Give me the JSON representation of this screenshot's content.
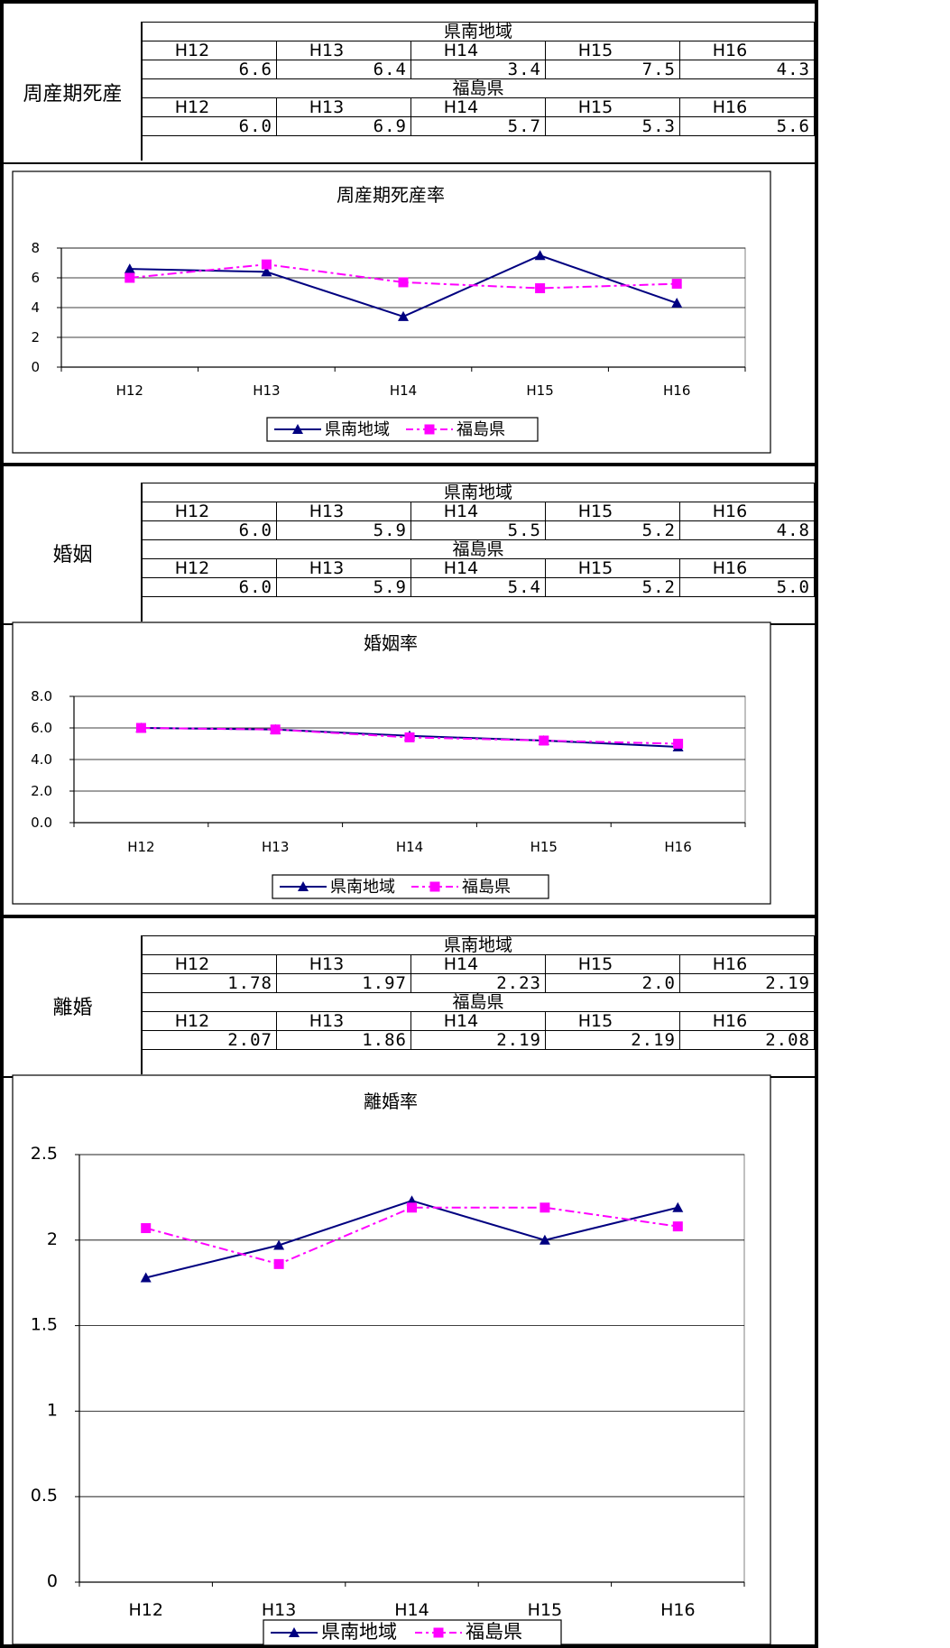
{
  "sections": [
    {
      "label": "周産期死産",
      "regions": [
        {
          "name": "県南地域",
          "years": [
            "H12",
            "H13",
            "H14",
            "H15",
            "H16"
          ],
          "values": [
            "6.6",
            "6.4",
            "3.4",
            "7.5",
            "4.3"
          ]
        },
        {
          "name": "福島県",
          "years": [
            "H12",
            "H13",
            "H14",
            "H15",
            "H16"
          ],
          "values": [
            "6.0",
            "6.9",
            "5.7",
            "5.3",
            "5.6"
          ]
        }
      ]
    },
    {
      "label": "婚姻",
      "regions": [
        {
          "name": "県南地域",
          "years": [
            "H12",
            "H13",
            "H14",
            "H15",
            "H16"
          ],
          "values": [
            "6.0",
            "5.9",
            "5.5",
            "5.2",
            "4.8"
          ]
        },
        {
          "name": "福島県",
          "years": [
            "H12",
            "H13",
            "H14",
            "H15",
            "H16"
          ],
          "values": [
            "6.0",
            "5.9",
            "5.4",
            "5.2",
            "5.0"
          ]
        }
      ]
    },
    {
      "label": "離婚",
      "regions": [
        {
          "name": "県南地域",
          "years": [
            "H12",
            "H13",
            "H14",
            "H15",
            "H16"
          ],
          "values": [
            "1.78",
            "1.97",
            "2.23",
            "2.0",
            "2.19"
          ]
        },
        {
          "name": "福島県",
          "years": [
            "H12",
            "H13",
            "H14",
            "H15",
            "H16"
          ],
          "values": [
            "2.07",
            "1.86",
            "2.19",
            "2.19",
            "2.08"
          ]
        }
      ]
    }
  ],
  "chart_data": [
    {
      "type": "line",
      "title": "周産期死産率",
      "categories": [
        "H12",
        "H13",
        "H14",
        "H15",
        "H16"
      ],
      "ylim": [
        0,
        8
      ],
      "yticks": [
        "0",
        "2",
        "4",
        "6",
        "8"
      ],
      "grid": true,
      "legend": "bottom",
      "series": [
        {
          "name": "県南地域",
          "values": [
            6.6,
            6.4,
            3.4,
            7.5,
            4.3
          ],
          "color": "#000080",
          "marker": "triangle",
          "dash": "solid"
        },
        {
          "name": "福島県",
          "values": [
            6.0,
            6.9,
            5.7,
            5.3,
            5.6
          ],
          "color": "#ff00ff",
          "marker": "square",
          "dash": "dashdot"
        }
      ]
    },
    {
      "type": "line",
      "title": "婚姻率",
      "categories": [
        "H12",
        "H13",
        "H14",
        "H15",
        "H16"
      ],
      "ylim": [
        0,
        8
      ],
      "yticks": [
        "0.0",
        "2.0",
        "4.0",
        "6.0",
        "8.0"
      ],
      "grid": true,
      "legend": "bottom",
      "series": [
        {
          "name": "県南地域",
          "values": [
            6.0,
            5.9,
            5.5,
            5.2,
            4.8
          ],
          "color": "#000080",
          "marker": "triangle",
          "dash": "solid"
        },
        {
          "name": "福島県",
          "values": [
            6.0,
            5.9,
            5.4,
            5.2,
            5.0
          ],
          "color": "#ff00ff",
          "marker": "square",
          "dash": "dashdot"
        }
      ]
    },
    {
      "type": "line",
      "title": "離婚率",
      "categories": [
        "H12",
        "H13",
        "H14",
        "H15",
        "H16"
      ],
      "ylim": [
        0,
        2.5
      ],
      "yticks": [
        "0",
        "0.5",
        "1",
        "1.5",
        "2",
        "2.5"
      ],
      "grid": true,
      "legend": "bottom",
      "series": [
        {
          "name": "県南地域",
          "values": [
            1.78,
            1.97,
            2.23,
            2.0,
            2.19
          ],
          "color": "#000080",
          "marker": "triangle",
          "dash": "solid"
        },
        {
          "name": "福島県",
          "values": [
            2.07,
            1.86,
            2.19,
            2.19,
            2.08
          ],
          "color": "#ff00ff",
          "marker": "square",
          "dash": "dashdot"
        }
      ]
    }
  ]
}
